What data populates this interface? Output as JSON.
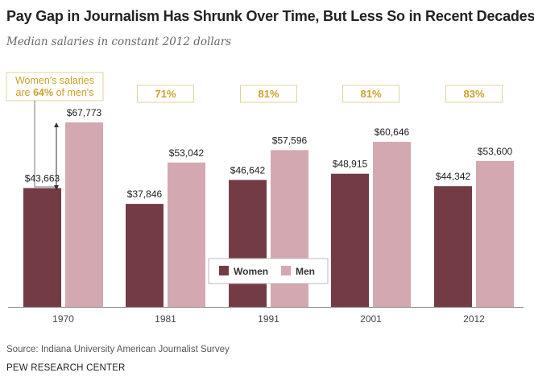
{
  "title": "Pay Gap in Journalism Has Shrunk Over Time, But Less So in Recent Decades",
  "subtitle": "Median salaries in constant 2012 dollars",
  "source": "Source: Indiana University American Journalist Survey",
  "org": "PEW RESEARCH CENTER",
  "annotation": {
    "line1": "Women's salaries",
    "line2_pre": "are ",
    "line2_bold": "64%",
    "line2_post": " of men's"
  },
  "colors": {
    "women": "#733c45",
    "men": "#d4a8b0",
    "ratio": "#c9a227",
    "axis": "#888888"
  },
  "chart_data": {
    "type": "bar",
    "categories": [
      "1970",
      "1981",
      "1991",
      "2001",
      "2012"
    ],
    "series": [
      {
        "name": "Women",
        "values": [
          43663,
          37846,
          46642,
          48915,
          44342
        ],
        "labels": [
          "$43,663",
          "$37,846",
          "$46,642",
          "$48,915",
          "$44,342"
        ]
      },
      {
        "name": "Men",
        "values": [
          67773,
          53042,
          57596,
          60646,
          53600
        ],
        "labels": [
          "$67,773",
          "$53,042",
          "$57,596",
          "$60,646",
          "$53,600"
        ]
      }
    ],
    "ratios": [
      "",
      "71%",
      "81%",
      "81%",
      "83%"
    ],
    "ylim": [
      0,
      67773
    ],
    "legend": "center-bottom",
    "grid": false
  }
}
